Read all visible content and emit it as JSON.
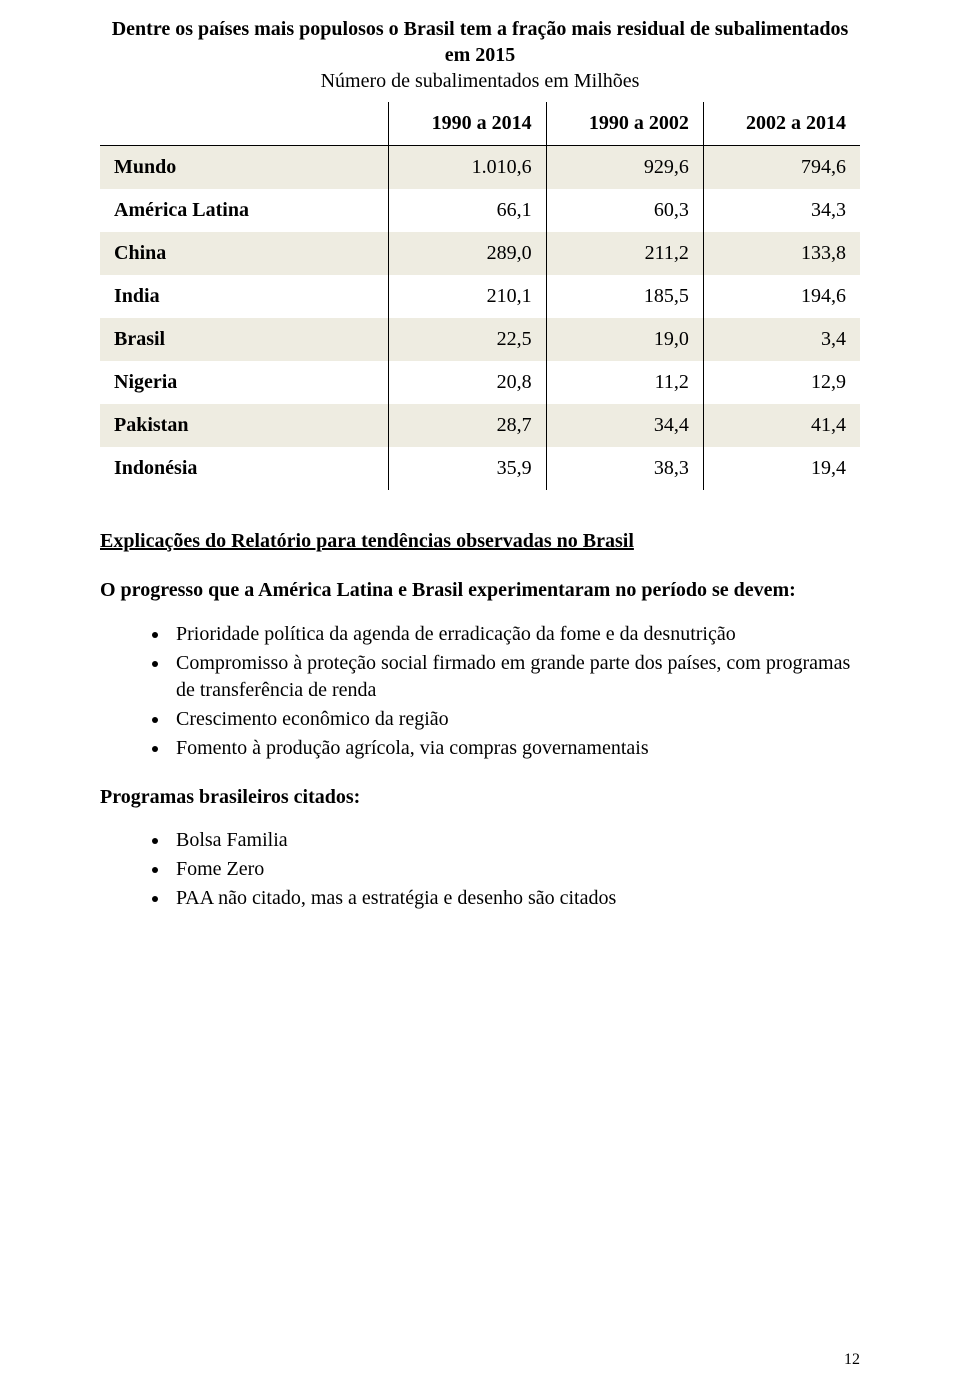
{
  "colors": {
    "row_odd_bg": "#eeece1",
    "row_even_bg": "#ffffff",
    "text": "#000000",
    "page_bg": "#ffffff",
    "border": "#000000"
  },
  "title": {
    "line1": "Dentre os países mais populosos o Brasil tem a fração mais residual de subalimentados",
    "line2": "em 2015",
    "subtitle": "Número de subalimentados em Milhões"
  },
  "table": {
    "headers": [
      "",
      "1990 a 2014",
      "1990 a 2002",
      "2002 a 2014"
    ],
    "rows": [
      {
        "label": "Mundo",
        "c1": "1.010,6",
        "c2": "929,6",
        "c3": "794,6"
      },
      {
        "label": "América Latina",
        "c1": "66,1",
        "c2": "60,3",
        "c3": "34,3"
      },
      {
        "label": "China",
        "c1": "289,0",
        "c2": "211,2",
        "c3": "133,8"
      },
      {
        "label": "India",
        "c1": "210,1",
        "c2": "185,5",
        "c3": "194,6"
      },
      {
        "label": "Brasil",
        "c1": "22,5",
        "c2": "19,0",
        "c3": "3,4"
      },
      {
        "label": "Nigeria",
        "c1": "20,8",
        "c2": "11,2",
        "c3": "12,9"
      },
      {
        "label": "Pakistan",
        "c1": "28,7",
        "c2": "34,4",
        "c3": "41,4"
      },
      {
        "label": "Indonésia",
        "c1": "35,9",
        "c2": "38,3",
        "c3": "19,4"
      }
    ]
  },
  "section_heading": "Explicações do Relatório para tendências observadas no Brasil",
  "progress_intro": "O progresso que a América Latina e Brasil experimentaram no período se devem:",
  "progress_bullets": [
    "Prioridade política da agenda de erradicação da fome e da desnutrição",
    "Compromisso à proteção social firmado em grande parte dos países, com programas de transferência de renda",
    "Crescimento econômico da região",
    "Fomento à produção agrícola, via compras governamentais"
  ],
  "programs_heading": "Programas brasileiros citados:",
  "programs_bullets": [
    "Bolsa Familia",
    "Fome Zero",
    "PAA não citado, mas a estratégia e desenho são citados"
  ],
  "page_number": "12"
}
